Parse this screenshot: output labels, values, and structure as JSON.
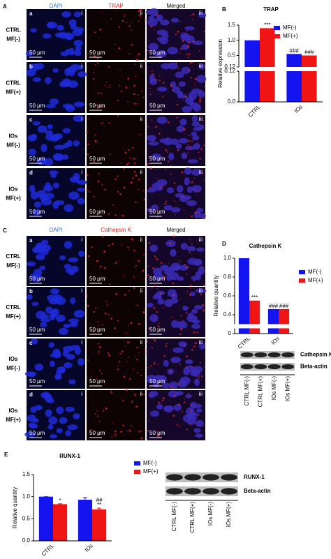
{
  "figure": {
    "image_panels": [
      {
        "letter": "A",
        "columns": [
          "DAPI",
          "TRAP",
          "Merged"
        ],
        "column_numerals": [
          "i",
          "ii",
          "iii"
        ],
        "scale_bar": "50 μm",
        "rows": [
          {
            "letter": "a",
            "label": [
              "CTRL",
              "MF(-)"
            ]
          },
          {
            "letter": "b",
            "label": [
              "CTRL",
              "MF(+)"
            ]
          },
          {
            "letter": "c",
            "label": [
              "IOs",
              "MF(-)"
            ]
          },
          {
            "letter": "d",
            "label": [
              "IOs",
              "MF(+)"
            ]
          }
        ]
      },
      {
        "letter": "C",
        "columns": [
          "DAPI",
          "Cathepsin K",
          "Merged"
        ],
        "column_numerals": [
          "i",
          "ii",
          "iii"
        ],
        "scale_bar": "50 μm",
        "rows": [
          {
            "letter": "a",
            "label": [
              "CTRL",
              "MF(-)"
            ]
          },
          {
            "letter": "b",
            "label": [
              "CTRL",
              "MF(+)"
            ]
          },
          {
            "letter": "c",
            "label": [
              "IOs",
              "MF(-)"
            ]
          },
          {
            "letter": "d",
            "label": [
              "IOs",
              "MF(+)"
            ]
          }
        ]
      }
    ],
    "blots": [
      {
        "bands": [
          "Cathepsin K",
          "Beta-actin"
        ],
        "lanes": [
          "CTRL MF(-)",
          "CTRL MF(+)",
          "IOs MF(-)",
          "IOs MF(+)"
        ]
      },
      {
        "bands": [
          "RUNX-1",
          "Beta-actin"
        ],
        "lanes": [
          "CTRL MF(-)",
          "CTRL MF(+)",
          "IOs MF(-)",
          "IOs MF(+)"
        ]
      }
    ]
  },
  "chart_data": [
    {
      "type": "bar",
      "letter": "B",
      "title": "TRAP",
      "ylabel": "Relative expression",
      "categories": [
        "CTRL",
        "IOs"
      ],
      "series": [
        {
          "name": "MF(-)",
          "color": "#1414f0",
          "values": [
            1.0,
            0.55
          ],
          "annotations": [
            null,
            [
              "###"
            ]
          ]
        },
        {
          "name": "MF(+)",
          "color": "#f01414",
          "values": [
            1.4,
            0.5
          ],
          "annotations": [
            [
              "***"
            ],
            [
              "###"
            ]
          ]
        }
      ],
      "ylim": [
        0,
        1.5
      ],
      "ybreak": 0.12,
      "yticks": [
        {
          "value": 0,
          "label": "0.0"
        },
        0.12,
        0.12,
        0.5,
        {
          "value": 1,
          "label": "1.0"
        },
        1.5
      ]
    },
    {
      "type": "bar",
      "letter": "D",
      "title": "Cathepsin K",
      "ylabel": "Relative quantity",
      "categories": [
        "CTRL",
        "IOs"
      ],
      "series": [
        {
          "name": "MF(-)",
          "color": "#1414f0",
          "values": [
            1.0,
            0.46
          ],
          "annotations": [
            null,
            [
              "###"
            ]
          ]
        },
        {
          "name": "MF(+)",
          "color": "#f01414",
          "values": [
            0.55,
            0.46
          ],
          "annotations": [
            [
              "***"
            ],
            [
              "###"
            ]
          ]
        }
      ],
      "ylim": [
        0,
        1
      ],
      "ybreak": 0.3,
      "yticks": [
        0,
        0.4,
        0.6,
        0.8,
        {
          "value": 1,
          "label": "1.0"
        }
      ]
    },
    {
      "type": "bar",
      "letter": "E",
      "title": "RUNX-1",
      "ylabel": "Relative quantity",
      "categories": [
        "CTRL",
        "IOs"
      ],
      "series": [
        {
          "name": "MF(-)",
          "color": "#1414f0",
          "values": [
            1.0,
            0.93
          ],
          "errors": [
            0,
            0.05
          ],
          "annotations": [
            null,
            null
          ]
        },
        {
          "name": "MF(+)",
          "color": "#f01414",
          "values": [
            0.83,
            0.71
          ],
          "errors": [
            0.01,
            0.03
          ],
          "annotations": [
            [
              "*"
            ],
            [
              "##",
              "**"
            ]
          ]
        }
      ],
      "ylim": [
        0,
        1.5
      ],
      "yticks": [
        {
          "value": 0,
          "label": "0.0"
        },
        0.5,
        {
          "value": 1,
          "label": "1.0"
        },
        1.5
      ]
    }
  ]
}
